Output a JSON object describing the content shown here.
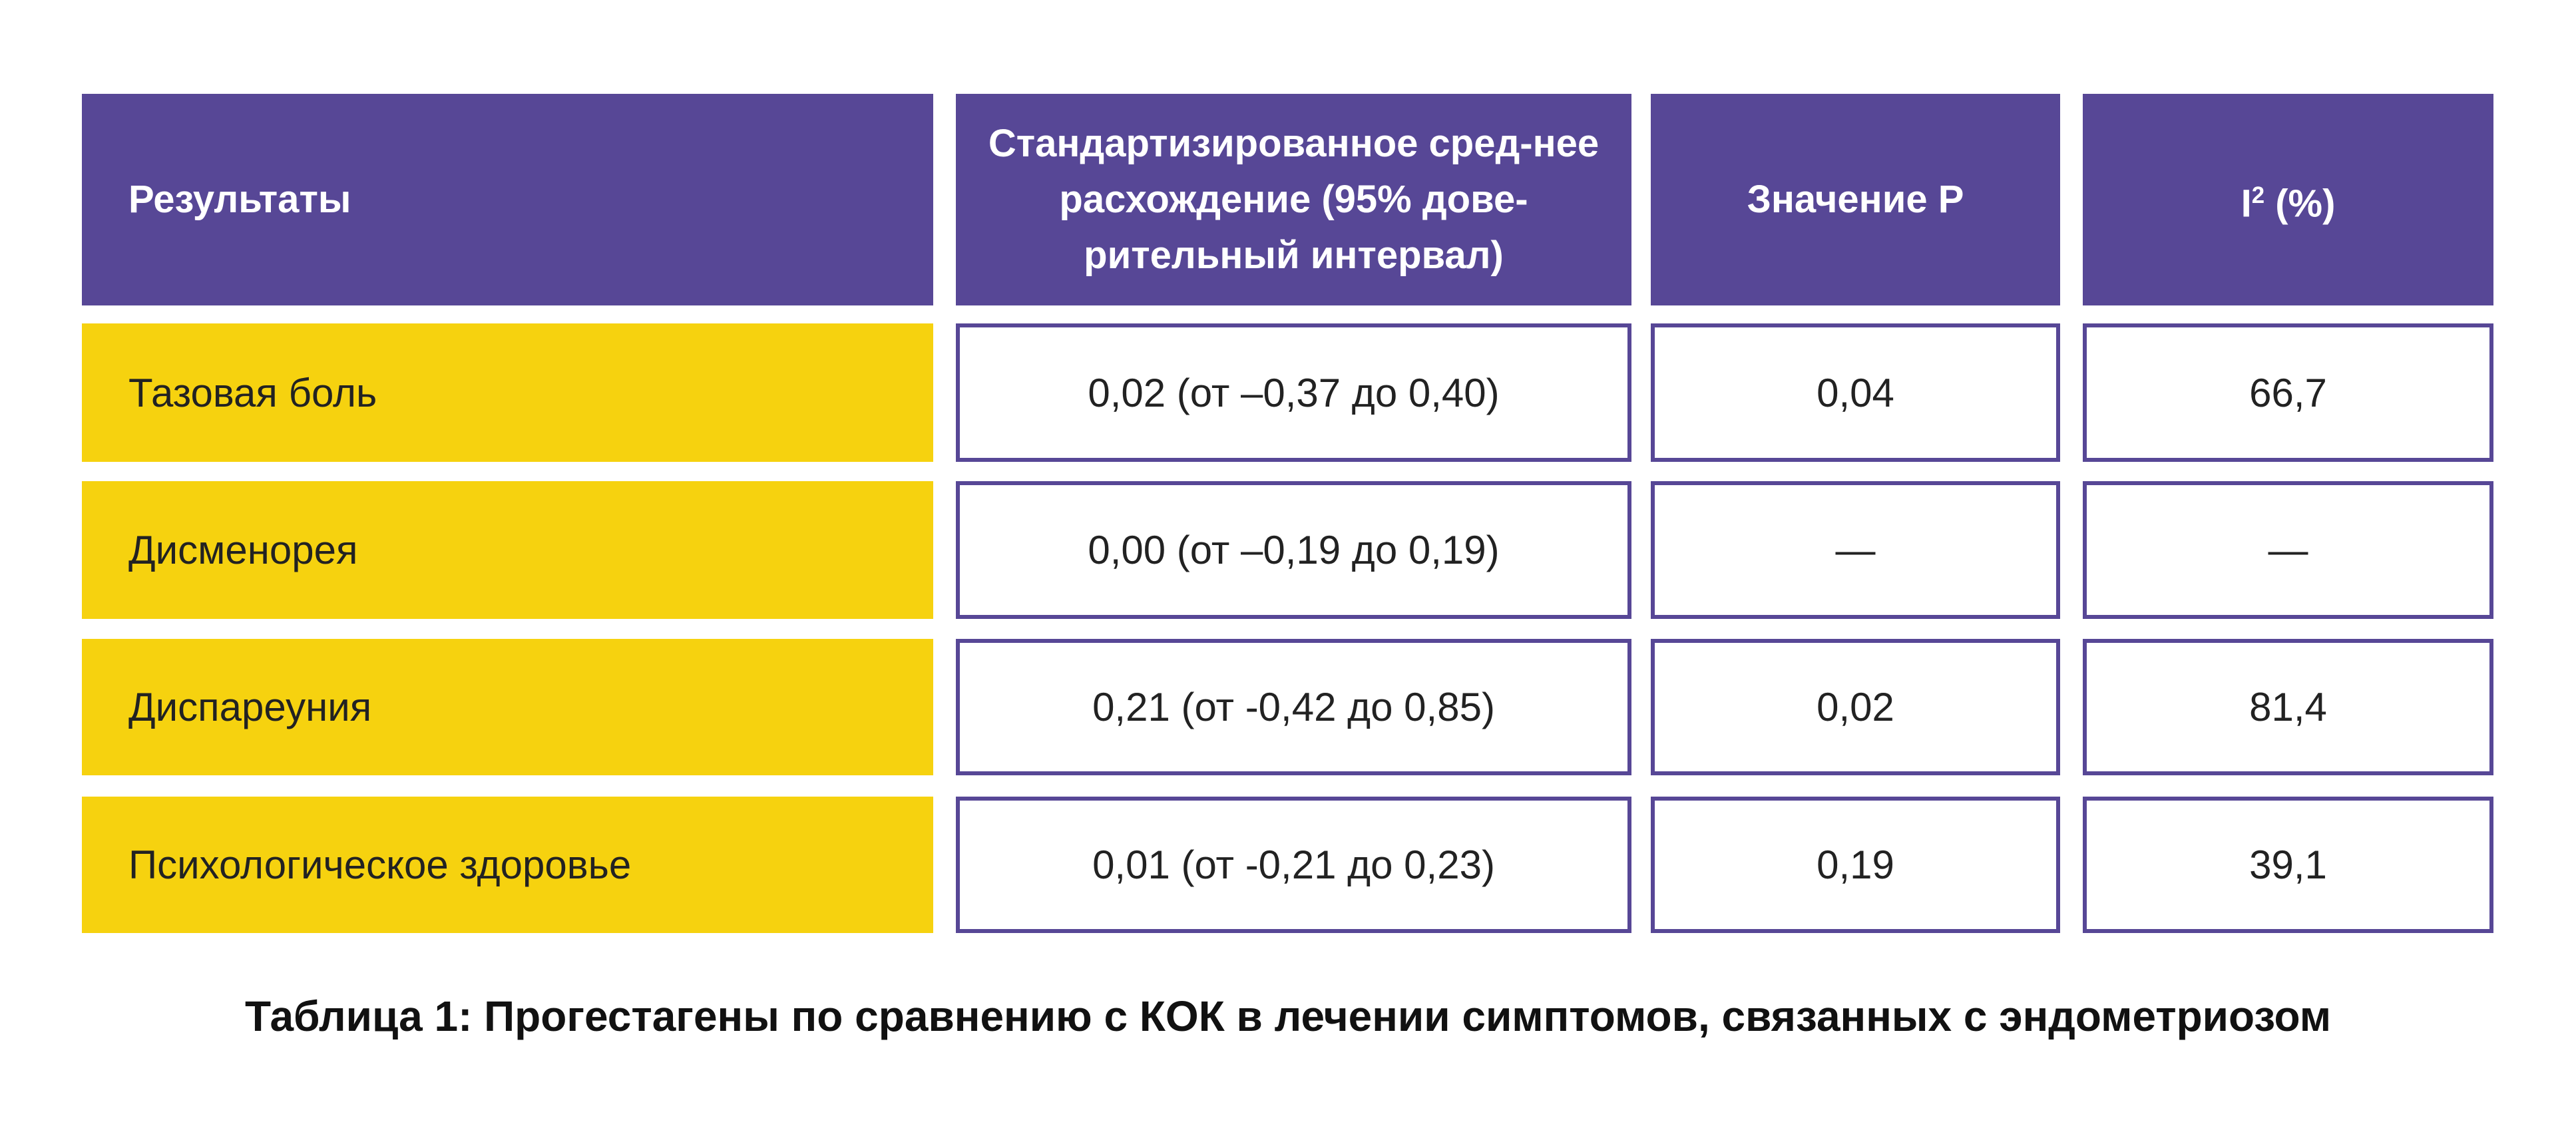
{
  "colors": {
    "header": "#574796",
    "label": "#f6d20f",
    "border": "#574796"
  },
  "table": {
    "headers": {
      "results": "Результаты",
      "smd": "Стандартизированное сред-нее расхождение (95% дове-рительный интервал)",
      "p_value": "Значение P",
      "i2_base": "I",
      "i2_sup": "2",
      "i2_unit": " (%)"
    },
    "rows": [
      {
        "label": "Тазовая боль",
        "smd": "0,02 (от –0,37 до 0,40)",
        "p": "0,04",
        "i2": "66,7"
      },
      {
        "label": "Дисменорея",
        "smd": "0,00 (от –0,19 до 0,19)",
        "p": "—",
        "i2": "—"
      },
      {
        "label": "Диспареуния",
        "smd": "0,21 (от -0,42 до 0,85)",
        "p": "0,02",
        "i2": "81,4"
      },
      {
        "label": "Психологическое здоровье",
        "smd": "0,01 (от -0,21 до 0,23)",
        "p": "0,19",
        "i2": "39,1"
      }
    ]
  },
  "caption": "Таблица 1: Прогестагены по сравнению с КОК в лечении симптомов, связанных с эндометриозом"
}
